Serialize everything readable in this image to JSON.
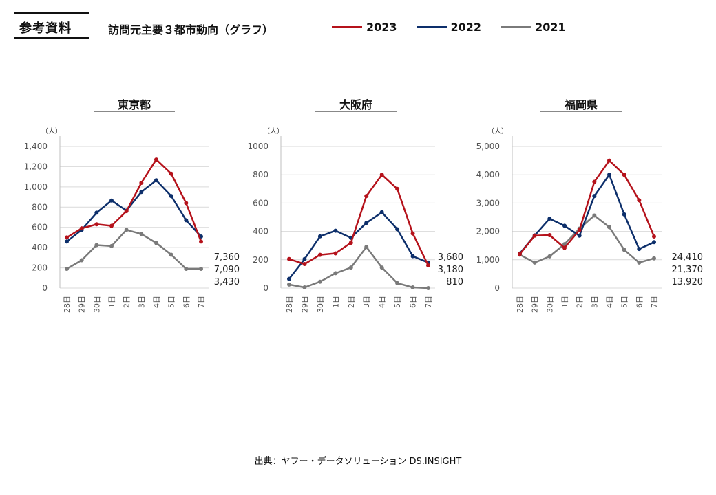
{
  "header": {
    "ref_label": "参考資料",
    "subtitle": "訪問元主要３都市動向（グラフ）",
    "legend": [
      {
        "name": "2023",
        "color": "#b5121b"
      },
      {
        "name": "2022",
        "color": "#0d2f6b"
      },
      {
        "name": "2021",
        "color": "#7a7a7a"
      }
    ]
  },
  "unit_label": "（人）",
  "source": "出典：ヤフー・データソリューション DS.INSIGHT",
  "chart_data": [
    {
      "type": "line",
      "title": "東京都",
      "categories": [
        "28日",
        "29日",
        "30日",
        "1日",
        "2日",
        "3日",
        "4日",
        "5日",
        "6日",
        "7日"
      ],
      "ylim": [
        0,
        1400
      ],
      "yticks": [
        "0",
        "200",
        "400",
        "600",
        "800",
        "1,000",
        "1,200",
        "1,400"
      ],
      "ytick_values": [
        0,
        200,
        400,
        600,
        800,
        1000,
        1200,
        1400
      ],
      "series": [
        {
          "name": "2023",
          "color": "#b5121b",
          "values": [
            500,
            590,
            630,
            615,
            760,
            1040,
            1270,
            1130,
            840,
            460
          ]
        },
        {
          "name": "2022",
          "color": "#0d2f6b",
          "values": [
            460,
            575,
            745,
            865,
            765,
            950,
            1065,
            910,
            670,
            510
          ]
        },
        {
          "name": "2021",
          "color": "#7a7a7a",
          "values": [
            190,
            275,
            425,
            415,
            575,
            535,
            445,
            330,
            190,
            190
          ]
        }
      ],
      "totals": [
        "7,360",
        "7,090",
        "3,430"
      ]
    },
    {
      "type": "line",
      "title": "大阪府",
      "categories": [
        "28日",
        "29日",
        "30日",
        "1日",
        "2日",
        "3日",
        "4日",
        "5日",
        "6日",
        "7日"
      ],
      "ylim": [
        0,
        1000
      ],
      "yticks": [
        "0",
        "200",
        "400",
        "600",
        "800",
        "1000"
      ],
      "ytick_values": [
        0,
        200,
        400,
        600,
        800,
        1000
      ],
      "series": [
        {
          "name": "2023",
          "color": "#b5121b",
          "values": [
            205,
            170,
            235,
            245,
            320,
            650,
            800,
            700,
            385,
            160
          ]
        },
        {
          "name": "2022",
          "color": "#0d2f6b",
          "values": [
            65,
            205,
            365,
            405,
            355,
            460,
            535,
            415,
            225,
            180
          ]
        },
        {
          "name": "2021",
          "color": "#7a7a7a",
          "values": [
            25,
            5,
            45,
            105,
            145,
            290,
            145,
            35,
            5,
            0
          ]
        }
      ],
      "totals": [
        "3,680",
        "3,180",
        "810"
      ]
    },
    {
      "type": "line",
      "title": "福岡県",
      "categories": [
        "28日",
        "29日",
        "30日",
        "1日",
        "2日",
        "3日",
        "4日",
        "5日",
        "6日",
        "7日"
      ],
      "ylim": [
        0,
        5000
      ],
      "yticks": [
        "0",
        "1,000",
        "2,000",
        "3,000",
        "4,000",
        "5,000"
      ],
      "ytick_values": [
        0,
        1000,
        2000,
        3000,
        4000,
        5000
      ],
      "series": [
        {
          "name": "2023",
          "color": "#b5121b",
          "values": [
            1200,
            1850,
            1870,
            1420,
            2050,
            3750,
            4500,
            4000,
            3100,
            1820
          ]
        },
        {
          "name": "2022",
          "color": "#0d2f6b",
          "values": [
            1220,
            1860,
            2450,
            2200,
            1850,
            3250,
            4000,
            2600,
            1380,
            1620
          ]
        },
        {
          "name": "2021",
          "color": "#7a7a7a",
          "values": [
            1180,
            900,
            1120,
            1550,
            2100,
            2560,
            2150,
            1350,
            900,
            1050
          ]
        }
      ],
      "totals": [
        "24,410",
        "21,370",
        "13,920"
      ]
    }
  ]
}
